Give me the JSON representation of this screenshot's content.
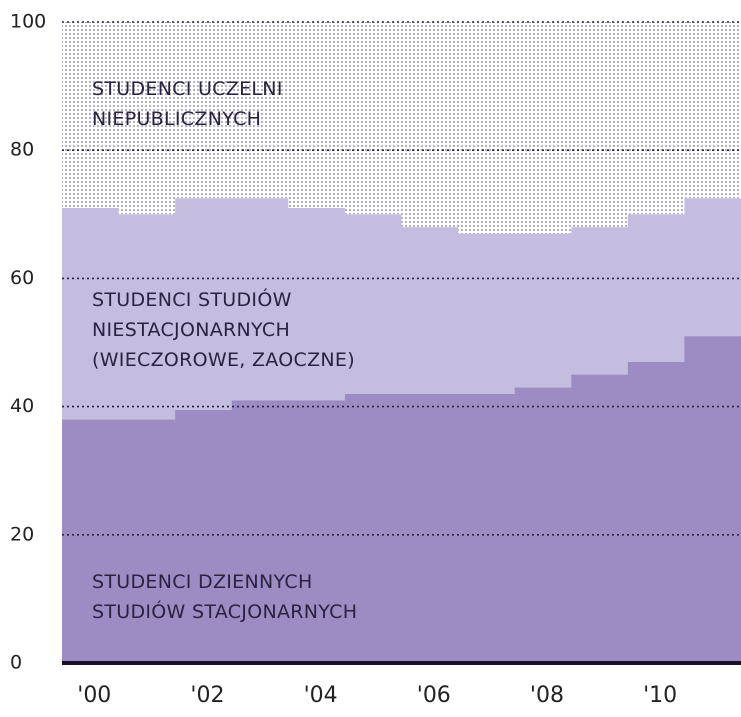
{
  "chart_data": {
    "type": "stacked_step_area",
    "categories": [
      "'00",
      null,
      "'02",
      null,
      "'04",
      null,
      "'06",
      null,
      "'08",
      null,
      "'10",
      null
    ],
    "series": [
      {
        "name": "STUDENCI DZIENNYCH STUDIÓW STACJONARNYCH",
        "color": "#9d8cc4",
        "values": [
          38,
          38,
          39.5,
          41,
          41,
          42,
          42,
          42,
          43,
          45,
          47,
          51
        ]
      },
      {
        "name": "STUDENCI STUDIÓW NIESTACJONARNYCH (WIECZOROWE, ZAOCZNE)",
        "color": "#c5bde0",
        "values": [
          33,
          32,
          33,
          31.5,
          30,
          28,
          26,
          25,
          24,
          23,
          23,
          21.5
        ]
      },
      {
        "name": "STUDENCI UCZELNI NIEPUBLICZNYCH",
        "color": "#b4b0c8",
        "values": [
          29,
          30,
          27.5,
          27.5,
          29,
          30,
          32,
          33,
          33,
          32,
          30,
          27.5
        ]
      }
    ],
    "ylim": [
      0,
      100
    ],
    "yticks": [
      0,
      20,
      40,
      60,
      80,
      100
    ],
    "grid": true
  }
}
